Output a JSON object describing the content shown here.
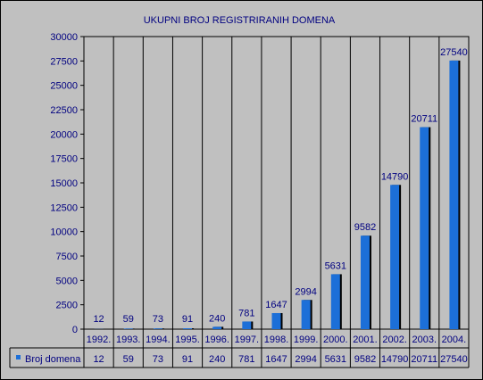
{
  "chart_data": {
    "type": "bar",
    "title": "UKUPNI BROJ REGISTRIRANIH DOMENA",
    "xlabel": "",
    "ylabel": "",
    "categories": [
      "1992.",
      "1993.",
      "1994.",
      "1995.",
      "1996.",
      "1997.",
      "1998.",
      "1999.",
      "2000.",
      "2001.",
      "2002.",
      "2003.",
      "2004."
    ],
    "series": [
      {
        "name": "Broj domena",
        "values": [
          12,
          59,
          73,
          91,
          240,
          781,
          1647,
          2994,
          5631,
          9582,
          14790,
          20711,
          27540
        ],
        "color": "#1c6fd8"
      }
    ],
    "ylim": [
      0,
      30000
    ],
    "yticks": [
      0,
      2500,
      5000,
      7500,
      10000,
      12500,
      15000,
      17500,
      20000,
      22500,
      25000,
      27500,
      30000
    ],
    "grid": "vertical",
    "legend": "data-table",
    "data_labels": true,
    "data_table": true
  },
  "colors": {
    "background": "#c0c0c0",
    "plot_area": "#c0c0c0",
    "bar": "#1c6fd8",
    "bar_shadow": "#000000",
    "text": "#000080",
    "grid": "#000000"
  }
}
